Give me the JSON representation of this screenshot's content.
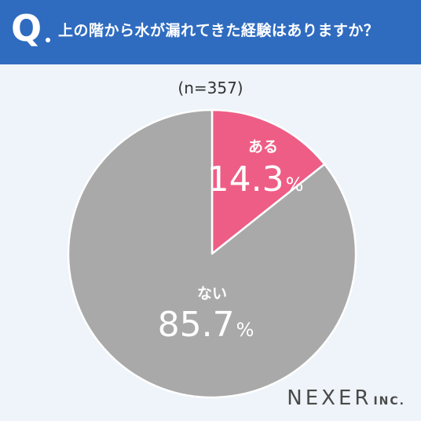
{
  "header": {
    "q_letter": "Q",
    "question": "上の階から水が漏れてきた経験はありますか？"
  },
  "sample_size": "(n=357)",
  "colors": {
    "header": "#2f6cc0",
    "aru": "#ee5d85",
    "nai": "#a9a9a9",
    "background": "#eef4f9"
  },
  "chart_data": {
    "type": "pie",
    "slices": [
      {
        "label": "ある",
        "value": 14.3,
        "display": "14.3",
        "unit": "%",
        "color": "#ee5d85"
      },
      {
        "label": "ない",
        "value": 85.7,
        "display": "85.7",
        "unit": "%",
        "color": "#a9a9a9"
      }
    ],
    "start": "12 o'clock",
    "direction": "clockwise"
  },
  "brand": {
    "name": "NEXER",
    "suffix": "INC."
  }
}
